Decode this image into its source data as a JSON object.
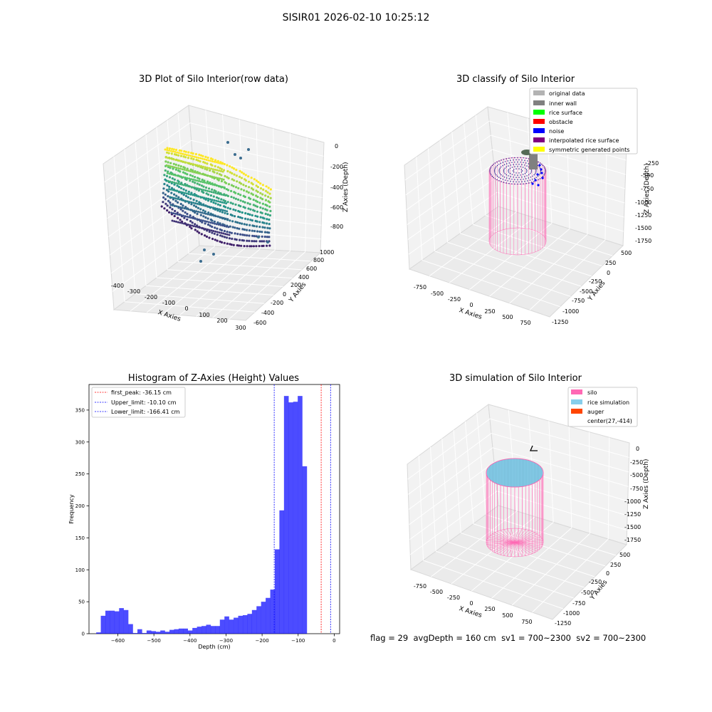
{
  "suptitle": "SISIR01 2026-02-10 10:25:12",
  "panels": {
    "raw": {
      "title": "3D Plot of Silo Interior(row data)",
      "xlabel": "X Axies",
      "ylabel": "Y Axies",
      "zlabel": "Z Axies (Depth)",
      "xticks": [
        "-400",
        "-300",
        "-200",
        "-100",
        "0",
        "100",
        "200",
        "300"
      ],
      "yticks": [
        "-600",
        "-400",
        "-200",
        "0",
        "200",
        "400",
        "600",
        "800",
        "1000"
      ],
      "zticks": [
        "0",
        "-200",
        "-400",
        "-600",
        "-800"
      ]
    },
    "classify": {
      "title": "3D classify of Silo Interior",
      "xlabel": "X Axies",
      "ylabel": "Y Axies",
      "zlabel": "Z Axies (Depth)",
      "xticks": [
        "-750",
        "-500",
        "-250",
        "0",
        "250",
        "500",
        "750"
      ],
      "yticks": [
        "-1250",
        "-1000",
        "-750",
        "-500",
        "-250",
        "0",
        "250",
        "500"
      ],
      "zticks": [
        "-250",
        "-500",
        "-750",
        "-1000",
        "-1250",
        "-1500",
        "-1750"
      ],
      "legend": [
        {
          "label": "original data",
          "color": "#b3b3b3"
        },
        {
          "label": "inner wall",
          "color": "#808080"
        },
        {
          "label": "rice surface",
          "color": "#00ff00"
        },
        {
          "label": "obstacle",
          "color": "#ff0000"
        },
        {
          "label": "noise",
          "color": "#0000ff"
        },
        {
          "label": "interpolated rice surface",
          "color": "#800080"
        },
        {
          "label": "symmetric generated points",
          "color": "#ffff00"
        }
      ]
    },
    "simulation": {
      "title": "3D simulation of Silo Interior",
      "xlabel": "X Axies",
      "ylabel": "Y Axies",
      "zlabel": "Z Axies (Depth)",
      "xticks": [
        "-750",
        "-500",
        "-250",
        "0",
        "250",
        "500",
        "750"
      ],
      "yticks": [
        "-1250",
        "-1000",
        "-750",
        "-500",
        "-250",
        "0",
        "250",
        "500"
      ],
      "zticks": [
        "0",
        "-250",
        "-500",
        "-750",
        "-1000",
        "-1250",
        "-1500",
        "-1750"
      ],
      "legend": [
        {
          "label": "silo",
          "color": "#ff69b4"
        },
        {
          "label": "rice simulation",
          "color": "#87ceeb"
        },
        {
          "label": "auger",
          "color": "#ff4500"
        },
        {
          "label": "center(27,-414)",
          "color": ""
        }
      ]
    }
  },
  "chart_data": {
    "type": "bar",
    "title": "Histogram of Z-Axies (Height) Values",
    "xlabel": "Depth (cm)",
    "ylabel": "Frequency",
    "xlim": [
      -680,
      15
    ],
    "ylim": [
      0,
      390
    ],
    "xticks": [
      -600,
      -500,
      -400,
      -300,
      -200,
      -100,
      0
    ],
    "yticks": [
      0,
      50,
      100,
      150,
      200,
      250,
      300,
      350
    ],
    "bar_color": "#0000ff",
    "bin_start": -660,
    "bin_width": 12.7,
    "values": [
      2,
      28,
      36,
      36,
      35,
      40,
      37,
      15,
      1,
      7,
      1,
      5,
      4,
      3,
      5,
      3,
      6,
      7,
      8,
      8,
      5,
      9,
      11,
      12,
      14,
      12,
      12,
      22,
      27,
      22,
      25,
      28,
      29,
      31,
      37,
      43,
      50,
      56,
      69,
      132,
      193,
      372,
      362,
      363,
      372,
      262
    ],
    "vlines": [
      {
        "label": "first_peak: -36.15 cm",
        "x": -36.15,
        "color": "#ff0000"
      },
      {
        "label": "Upper_limit: -10.10 cm",
        "x": -10.1,
        "color": "#0000ff"
      },
      {
        "label": "Lower_limit: -166.41 cm",
        "x": -166.41,
        "color": "#0000ff"
      }
    ]
  },
  "status": {
    "flag": "flag = 29",
    "avg_depth": "avgDepth = 160 cm",
    "sv1": "sv1 = 700~2300",
    "sv2": "sv2 = 700~2300"
  }
}
